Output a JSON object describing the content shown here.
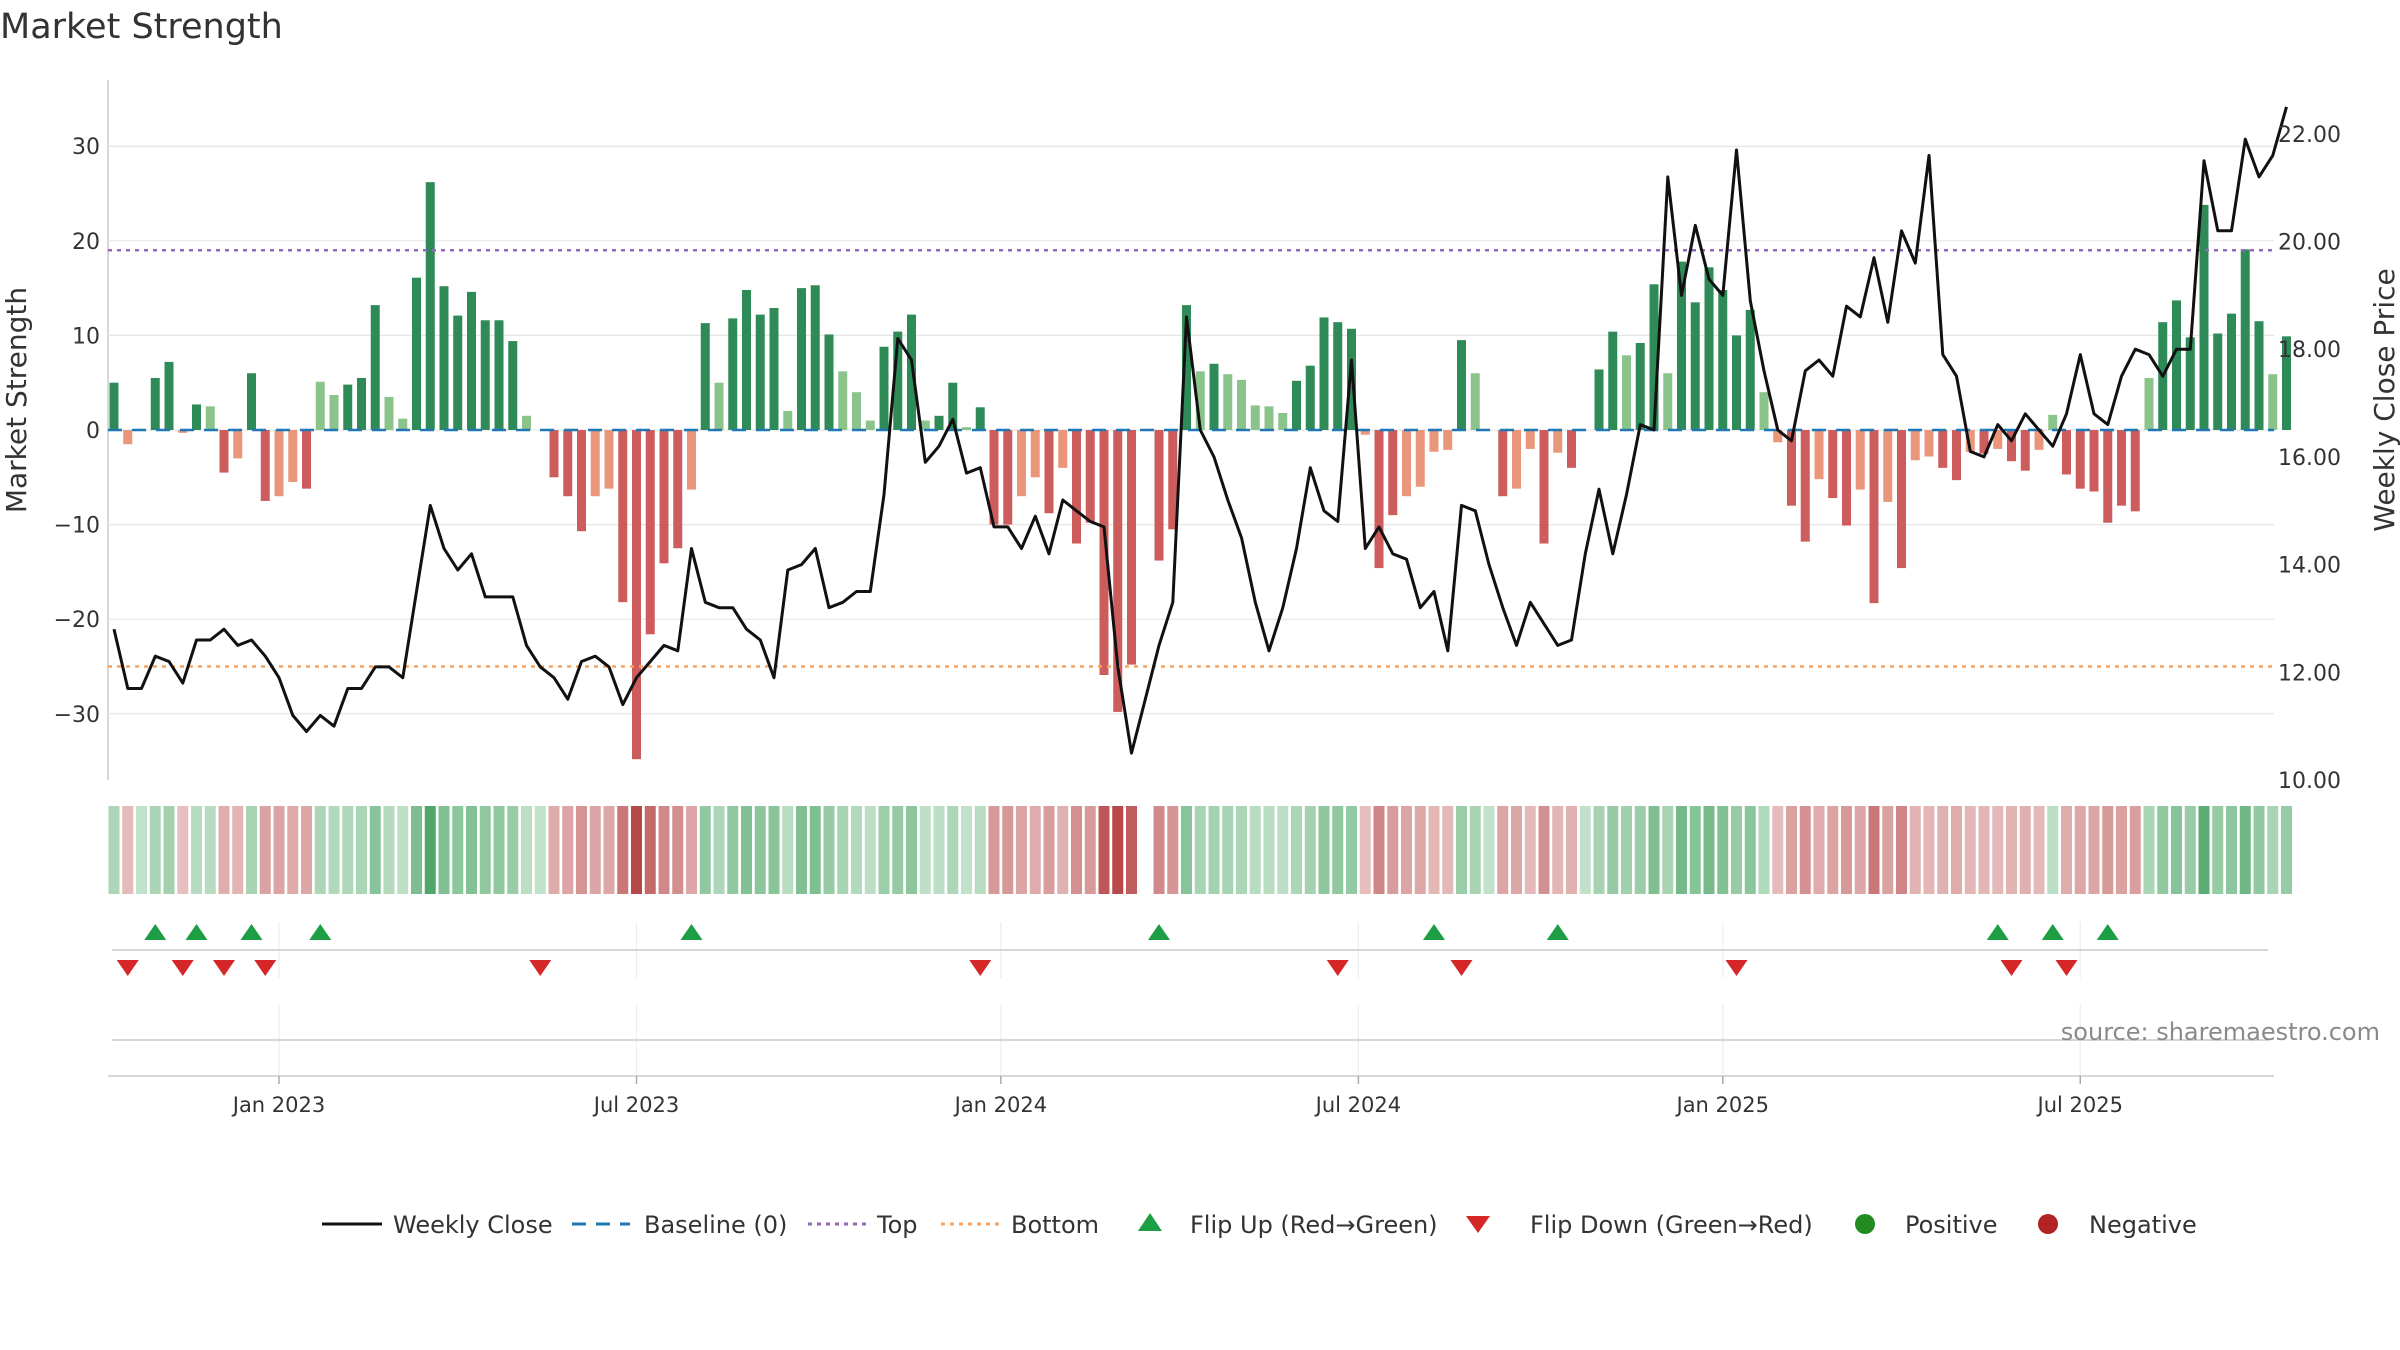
{
  "chart_data": {
    "type": "bar",
    "title": "Market Strength",
    "ylabel": "Market Strength",
    "y2label": "Weekly Close Price",
    "ylim": [
      -37,
      37
    ],
    "y2lim": [
      10,
      23
    ],
    "yticks": [
      30,
      20,
      10,
      0,
      -10,
      -20,
      -30
    ],
    "ytick_labels": [
      "30",
      "20",
      "10",
      "0",
      "−10",
      "−20",
      "−30"
    ],
    "y2ticks": [
      22,
      20,
      18,
      16,
      14,
      12,
      10
    ],
    "y2tick_labels": [
      "22.00",
      "20.00",
      "18.00",
      "16.00",
      "14.00",
      "12.00",
      "10.00"
    ],
    "x_start": "2022-10-10",
    "week_count": 157,
    "xticks": [
      {
        "label": "Jan 2023",
        "week": 12
      },
      {
        "label": "Jul 2023",
        "week": 38
      },
      {
        "label": "Jan 2024",
        "week": 64.5
      },
      {
        "label": "Jul 2024",
        "week": 90.5
      },
      {
        "label": "Jan 2025",
        "week": 117
      },
      {
        "label": "Jul 2025",
        "week": 143
      }
    ],
    "top_line": 19,
    "bottom_line": -25,
    "strength": [
      5,
      -1.5,
      0,
      5.5,
      7.2,
      -0.3,
      2.7,
      2.5,
      -4.5,
      -3,
      6,
      -7.5,
      -7,
      -5.5,
      -6.2,
      5.1,
      3.7,
      4.8,
      5.5,
      13.2,
      3.5,
      1.2,
      16.1,
      26.2,
      15.2,
      12.1,
      14.6,
      11.6,
      11.6,
      9.4,
      1.5,
      0,
      -5,
      -7,
      -10.7,
      -7,
      -6.2,
      -18.2,
      -34.8,
      -21.6,
      -14.1,
      -12.5,
      -6.3,
      11.3,
      5,
      11.8,
      14.8,
      12.2,
      12.9,
      2,
      15,
      15.3,
      10.1,
      6.2,
      4,
      1,
      8.8,
      10.4,
      12.2,
      1,
      1.5,
      5,
      0.3,
      2.4,
      -10,
      -10,
      -7,
      -5,
      -8.8,
      -4,
      -12,
      -9.8,
      -25.9,
      -29.8,
      -24.8,
      0,
      -13.8,
      -10.5,
      13.2,
      6.2,
      7,
      5.9,
      5.3,
      2.6,
      2.5,
      1.8,
      5.2,
      6.8,
      11.9,
      11.4,
      10.7,
      -0.5,
      -14.6,
      -9,
      -7,
      -6,
      -2.3,
      -2.1,
      9.5,
      6,
      0,
      -7,
      -6.2,
      -2,
      -12,
      -2.4,
      -4,
      0,
      6.4,
      10.4,
      7.9,
      9.2,
      15.4,
      6,
      17.8,
      13.5,
      17.2,
      14.8,
      10,
      12.7,
      4,
      -1.3,
      -8,
      -11.8,
      -5.2,
      -7.2,
      -10.1,
      -6.3,
      -18.3,
      -7.6,
      -14.6,
      -3.2,
      -2.8,
      -4,
      -5.3,
      -2.3,
      -2.5,
      -2,
      -3.3,
      -4.3,
      -2.1,
      1.6,
      -4.7,
      -6.2,
      -6.5,
      -9.8,
      -8,
      -8.6,
      5.5,
      11.4,
      13.7,
      9.8,
      23.8,
      10.2,
      12.3,
      19.1,
      11.5,
      5.9,
      9.9
    ],
    "weekly_close": [
      12.8,
      11.7,
      11.7,
      12.3,
      12.2,
      11.8,
      12.6,
      12.6,
      12.8,
      12.5,
      12.6,
      12.3,
      11.9,
      11.2,
      10.9,
      11.2,
      11.0,
      11.7,
      11.7,
      12.1,
      12.1,
      11.9,
      13.5,
      15.1,
      14.3,
      13.9,
      14.2,
      13.4,
      13.4,
      13.4,
      12.5,
      12.1,
      11.9,
      11.5,
      12.2,
      12.3,
      12.1,
      11.4,
      11.9,
      12.2,
      12.5,
      12.4,
      14.3,
      13.3,
      13.2,
      13.2,
      12.8,
      12.6,
      11.9,
      13.9,
      14.0,
      14.3,
      13.2,
      13.3,
      13.5,
      13.5,
      15.3,
      18.2,
      17.8,
      15.9,
      16.2,
      16.7,
      15.7,
      15.8,
      14.7,
      14.7,
      14.3,
      14.9,
      14.2,
      15.2,
      15.0,
      14.8,
      14.7,
      12.1,
      10.5,
      11.5,
      12.5,
      13.3,
      18.6,
      16.5,
      16.0,
      15.2,
      14.5,
      13.3,
      12.4,
      13.2,
      14.3,
      15.8,
      15.0,
      14.8,
      17.8,
      14.3,
      14.7,
      14.2,
      14.1,
      13.2,
      13.5,
      12.4,
      15.1,
      15.0,
      14.0,
      13.2,
      12.5,
      13.3,
      12.9,
      12.5,
      12.6,
      14.2,
      15.4,
      14.2,
      15.3,
      16.6,
      16.5,
      21.2,
      19.0,
      20.3,
      19.3,
      19.0,
      21.7,
      18.9,
      17.6,
      16.5,
      16.3,
      17.6,
      17.8,
      17.5,
      18.8,
      18.6,
      19.7,
      18.5,
      20.2,
      19.6,
      21.6,
      17.9,
      17.5,
      16.1,
      16.0,
      16.6,
      16.3,
      16.8,
      16.5,
      16.2,
      16.8,
      17.9,
      16.8,
      16.6,
      17.5,
      18.0,
      17.9,
      17.5,
      18.0,
      18.0,
      21.5,
      20.2,
      20.2,
      21.9,
      21.2,
      21.6,
      22.5
    ],
    "flip_up_weeks": [
      3,
      6,
      10,
      15,
      42,
      76,
      96,
      105,
      137,
      141,
      145
    ],
    "flip_down_weeks": [
      1,
      5,
      8,
      11,
      31,
      63,
      89,
      98,
      118,
      138,
      142
    ],
    "source": "source: sharemaestro.com",
    "legend": [
      "Weekly Close",
      "Baseline (0)",
      "Top",
      "Bottom",
      "Flip Up (Red→Green)",
      "Flip Down (Green→Red)",
      "Positive",
      "Negative"
    ],
    "colors": {
      "strong_green": "#2e8b57",
      "light_green": "#8bc48a",
      "strong_red": "#cd5c5c",
      "light_red": "#e9967a",
      "line": "#111111",
      "baseline": "#1f77b4",
      "top": "#9467bd",
      "bottom": "#f4a460",
      "flip_up": "#1e9e44",
      "flip_down": "#d62728",
      "positive": "#228b22",
      "negative": "#b22222",
      "grid": "#e6e6e6",
      "axis": "#cccccc"
    }
  }
}
